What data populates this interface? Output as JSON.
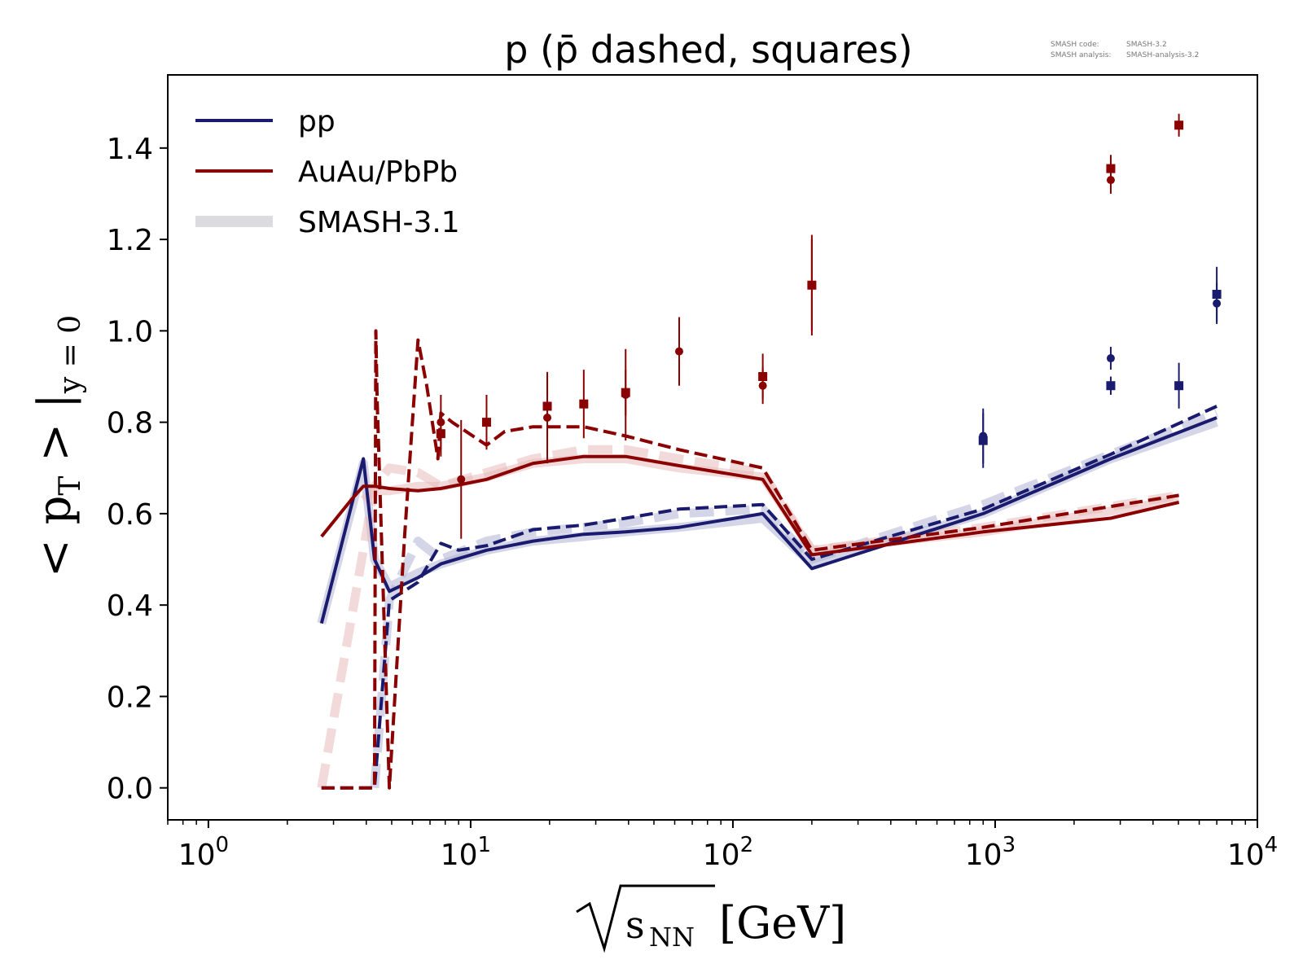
{
  "chart_data": {
    "type": "line",
    "title": "p (p̄ dashed, squares)",
    "watermark": {
      "line1_key": "SMASH code:",
      "line1_val": "SMASH-3.2",
      "line2_key": "SMASH analysis:",
      "line2_val": "SMASH-analysis-3.2"
    },
    "xlabel": {
      "sqrt": "√",
      "sub": "s",
      "subsub": "NN",
      "unit": "[GeV]"
    },
    "ylabel": {
      "main": "< p",
      "sub1": "T",
      "mid": " > |",
      "sub2": "y = 0"
    },
    "x_scale": "log",
    "xlim": [
      0.7,
      10000
    ],
    "ylim": [
      -0.07,
      1.56
    ],
    "x_ticks": [
      {
        "value": 1,
        "base": "10",
        "exp": "0"
      },
      {
        "value": 10,
        "base": "10",
        "exp": "1"
      },
      {
        "value": 100,
        "base": "10",
        "exp": "2"
      },
      {
        "value": 1000,
        "base": "10",
        "exp": "3"
      },
      {
        "value": 10000,
        "base": "10",
        "exp": "4"
      }
    ],
    "y_ticks": [
      {
        "value": 0.0,
        "label": "0.0"
      },
      {
        "value": 0.2,
        "label": "0.2"
      },
      {
        "value": 0.4,
        "label": "0.4"
      },
      {
        "value": 0.6,
        "label": "0.6"
      },
      {
        "value": 0.8,
        "label": "0.8"
      },
      {
        "value": 1.0,
        "label": "1.0"
      },
      {
        "value": 1.2,
        "label": "1.2"
      },
      {
        "value": 1.4,
        "label": "1.4"
      }
    ],
    "grid": false,
    "legend": {
      "placement": "top-left",
      "entries": [
        {
          "label": "pp",
          "color": "#1a1a6e",
          "style": "solid"
        },
        {
          "label": "AuAu/PbPb",
          "color": "#8b0000",
          "style": "solid"
        },
        {
          "label": "SMASH-3.1",
          "color": "#dcdce0",
          "style": "thick"
        }
      ]
    },
    "series": [
      {
        "kind": "smash31",
        "color": "#b0b4d4",
        "style": "solid",
        "x": [
          2.7,
          3.9,
          4.3,
          4.9,
          6.3,
          7.7,
          11.5,
          17.3,
          27,
          39,
          62.4,
          130,
          200,
          900,
          2760,
          7000
        ],
        "y": [
          0.36,
          0.71,
          0.5,
          0.44,
          0.47,
          0.49,
          0.52,
          0.54,
          0.55,
          0.56,
          0.57,
          0.59,
          0.49,
          0.6,
          0.72,
          0.8
        ]
      },
      {
        "kind": "smash31",
        "color": "#b0b4d4",
        "style": "dashed",
        "x": [
          4.3,
          4.9,
          6.3,
          7.7,
          11.5,
          17.3,
          27,
          39,
          62.4,
          130,
          200,
          900,
          2760,
          7000
        ],
        "y": [
          0.0,
          0.41,
          0.54,
          0.5,
          0.54,
          0.56,
          0.57,
          0.58,
          0.6,
          0.61,
          0.5,
          0.62,
          0.73,
          0.82
        ]
      },
      {
        "kind": "smash31",
        "color": "#e8bcbc",
        "style": "solid",
        "x": [
          3.9,
          4.3,
          4.9,
          6.3,
          7.7,
          11.5,
          17.3,
          27,
          39,
          62.4,
          130,
          200,
          900,
          5020
        ],
        "y": [
          0.63,
          0.65,
          0.65,
          0.66,
          0.66,
          0.68,
          0.71,
          0.72,
          0.72,
          0.7,
          0.68,
          0.52,
          0.56,
          0.63
        ]
      },
      {
        "kind": "smash31",
        "color": "#e8bcbc",
        "style": "dashed",
        "x": [
          2.7,
          3.9,
          4.3,
          4.9,
          6.3,
          7.7,
          11.5,
          17.3,
          27,
          39,
          62.4,
          130,
          200,
          900,
          5020
        ],
        "y": [
          0.0,
          0.52,
          0.66,
          0.7,
          0.69,
          0.66,
          0.69,
          0.72,
          0.74,
          0.74,
          0.72,
          0.69,
          0.52,
          0.57,
          0.64
        ]
      },
      {
        "kind": "smash32",
        "label": "pp",
        "color": "#1a1a6e",
        "style": "solid",
        "x": [
          2.7,
          3.9,
          4.3,
          4.9,
          6.3,
          7.7,
          11.5,
          17.3,
          27,
          39,
          62.4,
          130,
          200,
          900,
          2760,
          7000
        ],
        "y": [
          0.36,
          0.72,
          0.5,
          0.43,
          0.46,
          0.49,
          0.52,
          0.54,
          0.555,
          0.56,
          0.57,
          0.6,
          0.48,
          0.6,
          0.72,
          0.81
        ]
      },
      {
        "kind": "smash32",
        "label": "pp (p̄)",
        "color": "#1a1a6e",
        "style": "dashed",
        "x": [
          2.7,
          4.3,
          4.9,
          6.3,
          7.7,
          9,
          11.5,
          17.3,
          27,
          39,
          62.4,
          130,
          200,
          900,
          2760,
          7000
        ],
        "y": [
          0.0,
          0.0,
          0.41,
          0.45,
          0.535,
          0.52,
          0.53,
          0.565,
          0.575,
          0.59,
          0.61,
          0.62,
          0.5,
          0.61,
          0.73,
          0.835
        ]
      },
      {
        "kind": "smash32",
        "label": "AuAu/PbPb",
        "color": "#8b0000",
        "style": "solid",
        "x": [
          2.7,
          3.5,
          3.9,
          4.3,
          4.9,
          6.3,
          7.7,
          11.5,
          17.3,
          27,
          39,
          62.4,
          130,
          200,
          900,
          2760,
          5020
        ],
        "y": [
          0.55,
          0.63,
          0.66,
          0.66,
          0.655,
          0.65,
          0.655,
          0.675,
          0.71,
          0.725,
          0.725,
          0.705,
          0.675,
          0.51,
          0.56,
          0.59,
          0.625
        ]
      },
      {
        "kind": "smash32",
        "label": "AuAu/PbPb (p̄)",
        "color": "#8b0000",
        "style": "dashed",
        "x": [
          2.7,
          3.9,
          4.3,
          4.35,
          4.4,
          4.9,
          5.6,
          6.3,
          6.8,
          7.5,
          7.7,
          8.5,
          11.5,
          13.5,
          17.3,
          27,
          39,
          62.4,
          130,
          200,
          900,
          5020
        ],
        "y": [
          0.0,
          0.0,
          0.0,
          1.0,
          0.85,
          0.0,
          0.55,
          0.98,
          0.88,
          0.72,
          0.82,
          0.8,
          0.75,
          0.78,
          0.79,
          0.79,
          0.77,
          0.74,
          0.7,
          0.52,
          0.57,
          0.64
        ]
      }
    ],
    "data_points": [
      {
        "system": "AuAu/PbPb",
        "particle": "p",
        "marker": "circle",
        "color": "#8b0000",
        "x": 7.7,
        "y": 0.8,
        "err": 0.06
      },
      {
        "system": "AuAu/PbPb",
        "particle": "p",
        "marker": "circle",
        "color": "#8b0000",
        "x": 9.2,
        "y": 0.675,
        "err": 0.13
      },
      {
        "system": "AuAu/PbPb",
        "particle": "p",
        "marker": "circle",
        "color": "#8b0000",
        "x": 19.6,
        "y": 0.81,
        "err": 0.1
      },
      {
        "system": "AuAu/PbPb",
        "particle": "p",
        "marker": "circle",
        "color": "#8b0000",
        "x": 39,
        "y": 0.86,
        "err": 0.1
      },
      {
        "system": "AuAu/PbPb",
        "particle": "p",
        "marker": "circle",
        "color": "#8b0000",
        "x": 62.4,
        "y": 0.955,
        "err": 0.075
      },
      {
        "system": "AuAu/PbPb",
        "particle": "p",
        "marker": "circle",
        "color": "#8b0000",
        "x": 130,
        "y": 0.88,
        "err": 0.04
      },
      {
        "system": "AuAu/PbPb",
        "particle": "p",
        "marker": "circle",
        "color": "#8b0000",
        "x": 200,
        "y": 1.1,
        "err": 0.11
      },
      {
        "system": "AuAu/PbPb",
        "particle": "p",
        "marker": "circle",
        "color": "#8b0000",
        "x": 2760,
        "y": 1.33,
        "err": 0.03
      },
      {
        "system": "AuAu/PbPb",
        "particle": "pbar",
        "marker": "square",
        "color": "#8b0000",
        "x": 7.7,
        "y": 0.775,
        "err": 0.05
      },
      {
        "system": "AuAu/PbPb",
        "particle": "pbar",
        "marker": "square",
        "color": "#8b0000",
        "x": 11.5,
        "y": 0.8,
        "err": 0.06
      },
      {
        "system": "AuAu/PbPb",
        "particle": "pbar",
        "marker": "square",
        "color": "#8b0000",
        "x": 19.6,
        "y": 0.835,
        "err": 0.07
      },
      {
        "system": "AuAu/PbPb",
        "particle": "pbar",
        "marker": "square",
        "color": "#8b0000",
        "x": 27,
        "y": 0.84,
        "err": 0.075
      },
      {
        "system": "AuAu/PbPb",
        "particle": "pbar",
        "marker": "square",
        "color": "#8b0000",
        "x": 39,
        "y": 0.865,
        "err": 0.05
      },
      {
        "system": "AuAu/PbPb",
        "particle": "pbar",
        "marker": "square",
        "color": "#8b0000",
        "x": 130,
        "y": 0.9,
        "err": 0.05
      },
      {
        "system": "AuAu/PbPb",
        "particle": "pbar",
        "marker": "square",
        "color": "#8b0000",
        "x": 200,
        "y": 1.1,
        "err": 0.1
      },
      {
        "system": "AuAu/PbPb",
        "particle": "pbar",
        "marker": "square",
        "color": "#8b0000",
        "x": 2760,
        "y": 1.355,
        "err": 0.03
      },
      {
        "system": "AuAu/PbPb",
        "particle": "pbar",
        "marker": "square",
        "color": "#8b0000",
        "x": 5020,
        "y": 1.45,
        "err": 0.025
      },
      {
        "system": "pp",
        "particle": "p",
        "marker": "circle",
        "color": "#1a1a6e",
        "x": 900,
        "y": 0.77,
        "err": 0.06
      },
      {
        "system": "pp",
        "particle": "p",
        "marker": "circle",
        "color": "#1a1a6e",
        "x": 2760,
        "y": 0.94,
        "err": 0.025
      },
      {
        "system": "pp",
        "particle": "p",
        "marker": "circle",
        "color": "#1a1a6e",
        "x": 7000,
        "y": 1.06,
        "err": 0.045
      },
      {
        "system": "pp",
        "particle": "pbar",
        "marker": "square",
        "color": "#1a1a6e",
        "x": 900,
        "y": 0.76,
        "err": 0.06
      },
      {
        "system": "pp",
        "particle": "pbar",
        "marker": "square",
        "color": "#1a1a6e",
        "x": 2760,
        "y": 0.88,
        "err": 0.02
      },
      {
        "system": "pp",
        "particle": "pbar",
        "marker": "square",
        "color": "#1a1a6e",
        "x": 5020,
        "y": 0.88,
        "err": 0.05
      },
      {
        "system": "pp",
        "particle": "pbar",
        "marker": "square",
        "color": "#1a1a6e",
        "x": 7000,
        "y": 1.08,
        "err": 0.06
      }
    ]
  }
}
